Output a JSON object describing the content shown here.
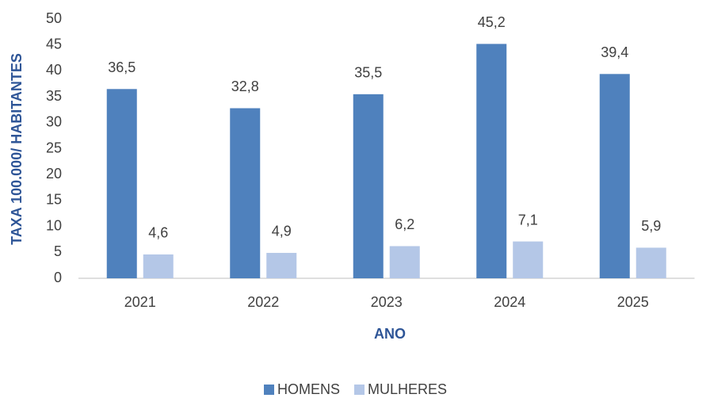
{
  "chart_data": {
    "type": "bar",
    "categories": [
      "2021",
      "2022",
      "2023",
      "2024",
      "2025"
    ],
    "series": [
      {
        "name": "HOMENS",
        "color": "#4f81bd",
        "values": [
          36.5,
          32.8,
          35.5,
          45.2,
          39.4
        ],
        "value_labels": [
          "36,5",
          "32,8",
          "35,5",
          "45,2",
          "39,4"
        ]
      },
      {
        "name": "MULHERES",
        "color": "#b4c7e7",
        "values": [
          4.6,
          4.9,
          6.2,
          7.1,
          5.9
        ],
        "value_labels": [
          "4,6",
          "4,9",
          "6,2",
          "7,1",
          "5,9"
        ]
      }
    ],
    "xlabel": "ANO",
    "ylabel": "TAXA 100.000/ HABITANTES",
    "ylim": [
      0,
      50
    ],
    "yticks": [
      0,
      5,
      10,
      15,
      20,
      25,
      30,
      35,
      40,
      45,
      50
    ],
    "grid": false,
    "legend": "bottom"
  }
}
